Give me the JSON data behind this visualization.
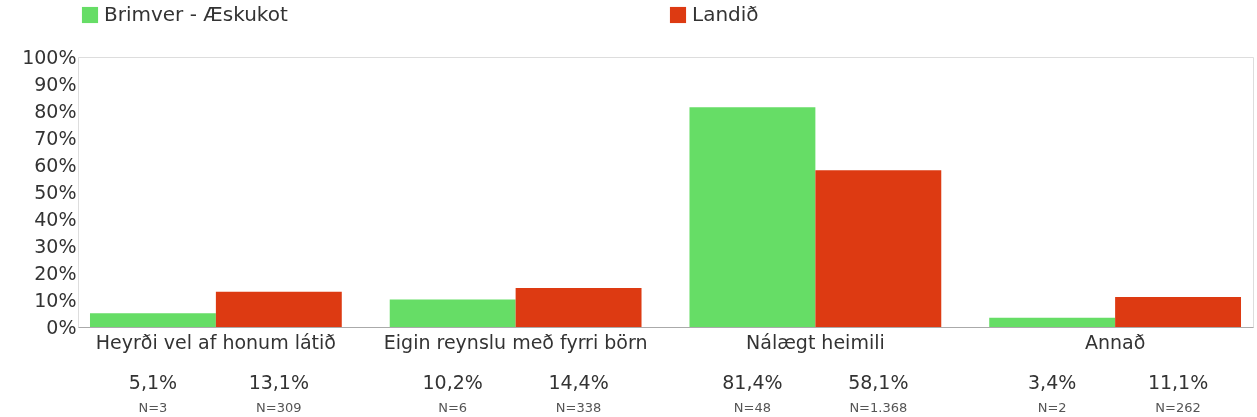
{
  "chart_data": {
    "type": "bar",
    "categories": [
      "Heyrði vel af honum látið",
      "Eigin reynslu með fyrri börn",
      "Nálægt heimili",
      "Annað"
    ],
    "series": [
      {
        "name": "Brimver - Æskukot",
        "color": "#66dd66",
        "values": [
          5.1,
          10.2,
          81.4,
          3.4
        ],
        "value_labels": [
          "5,1%",
          "10,2%",
          "81,4%",
          "3,4%"
        ]
      },
      {
        "name": "Landið",
        "color": "#dd3a12",
        "values": [
          13.1,
          14.4,
          58.1,
          11.1
        ],
        "value_labels": [
          "13,1%",
          "14,4%",
          "58,1%",
          "11,1%"
        ]
      }
    ],
    "annotations": [
      "N=3",
      "N=309",
      "N=6",
      "N=338",
      "N=48",
      "N=1.368",
      "N=2",
      "N=262"
    ],
    "ylim": [
      0,
      100
    ],
    "yticks": [
      {
        "value": 0,
        "label": "0%"
      },
      {
        "value": 10,
        "label": "10%"
      },
      {
        "value": 20,
        "label": "20%"
      },
      {
        "value": 30,
        "label": "30%"
      },
      {
        "value": 40,
        "label": "40%"
      },
      {
        "value": 50,
        "label": "50%"
      },
      {
        "value": 60,
        "label": "60%"
      },
      {
        "value": 70,
        "label": "70%"
      },
      {
        "value": 80,
        "label": "80%"
      },
      {
        "value": 90,
        "label": "90%"
      },
      {
        "value": 100,
        "label": "100%"
      }
    ],
    "grid": false,
    "legend": "top"
  }
}
